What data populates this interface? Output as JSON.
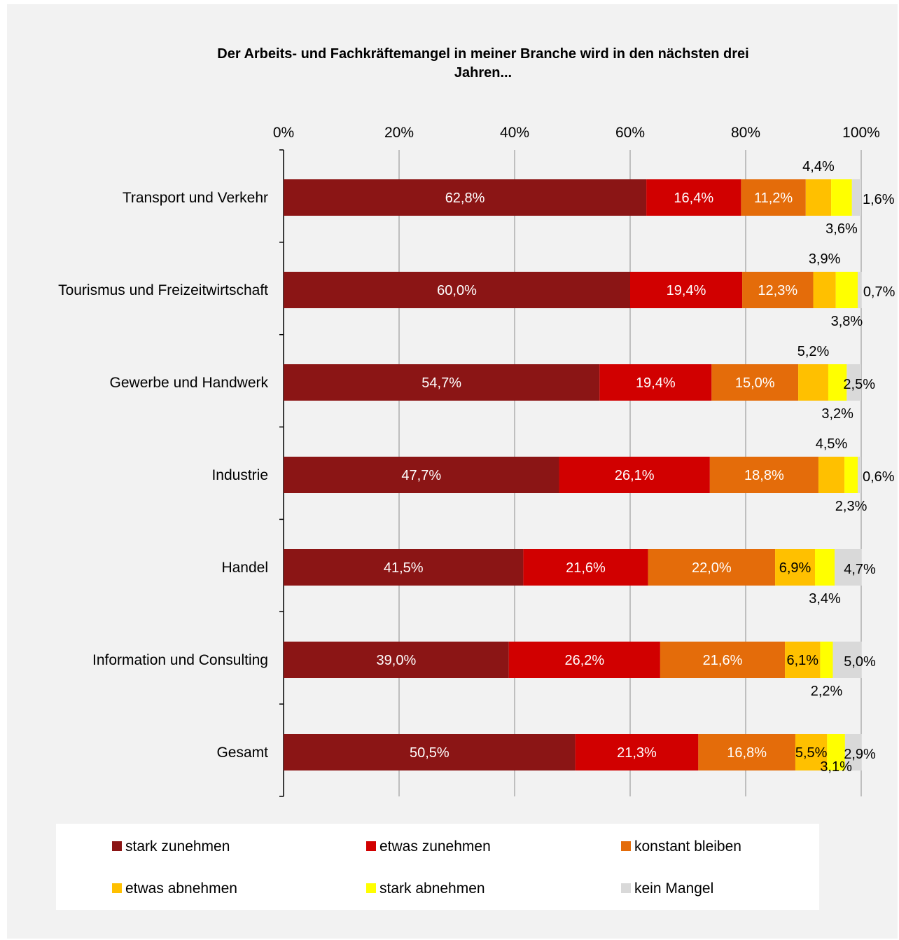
{
  "chart_data": {
    "type": "bar",
    "orientation": "horizontal",
    "stacked": true,
    "title": "Der Arbeits- und Fachkräftemangel in meiner Branche wird in den nächsten drei Jahren...",
    "title_lines": [
      "Der Arbeits- und Fachkräftemangel in meiner Branche wird in den nächsten drei",
      "Jahren..."
    ],
    "xlim": [
      0,
      100
    ],
    "x_ticks": [
      "0%",
      "20%",
      "40%",
      "60%",
      "80%",
      "100%"
    ],
    "x_axis_position": "top",
    "grid": true,
    "legend_position": "bottom",
    "categories": [
      "Transport und Verkehr",
      "Tourismus und Freizeitwirtschaft",
      "Gewerbe und Handwerk",
      "Industrie",
      "Handel",
      "Information und Consulting",
      "Gesamt"
    ],
    "series": [
      {
        "name": "stark zunehmen",
        "color": "#8b1515",
        "values": [
          62.8,
          60.0,
          54.7,
          47.7,
          41.5,
          39.0,
          50.5
        ],
        "labels": [
          "62,8%",
          "60,0%",
          "54,7%",
          "47,7%",
          "41,5%",
          "39,0%",
          "50,5%"
        ]
      },
      {
        "name": "etwas zunehmen",
        "color": "#d10000",
        "values": [
          16.4,
          19.4,
          19.4,
          26.1,
          21.6,
          26.2,
          21.3
        ],
        "labels": [
          "16,4%",
          "19,4%",
          "19,4%",
          "26,1%",
          "21,6%",
          "26,2%",
          "21,3%"
        ]
      },
      {
        "name": "konstant bleiben",
        "color": "#e46c0a",
        "values": [
          11.2,
          12.3,
          15.0,
          18.8,
          22.0,
          21.6,
          16.8
        ],
        "labels": [
          "11,2%",
          "12,3%",
          "15,0%",
          "18,8%",
          "22,0%",
          "21,6%",
          "16,8%"
        ]
      },
      {
        "name": "etwas abnehmen",
        "color": "#ffc000",
        "values": [
          4.4,
          3.9,
          5.2,
          4.5,
          6.9,
          6.1,
          5.5
        ],
        "labels": [
          "4,4%",
          "3,9%",
          "5,2%",
          "4,5%",
          "6,9%",
          "6,1%",
          "5,5%"
        ]
      },
      {
        "name": "stark abnehmen",
        "color": "#ffff00",
        "values": [
          3.6,
          3.8,
          3.2,
          2.3,
          3.4,
          2.2,
          3.1
        ],
        "labels": [
          "3,6%",
          "3,8%",
          "3,2%",
          "2,3%",
          "3,4%",
          "2,2%",
          "3,1%"
        ]
      },
      {
        "name": "kein Mangel",
        "color": "#d9d9d9",
        "values": [
          1.6,
          0.7,
          2.5,
          0.6,
          4.7,
          5.0,
          2.9
        ],
        "labels": [
          "1,6%",
          "0,7%",
          "2,5%",
          "0,6%",
          "4,7%",
          "5,0%",
          "2,9%"
        ]
      }
    ]
  }
}
